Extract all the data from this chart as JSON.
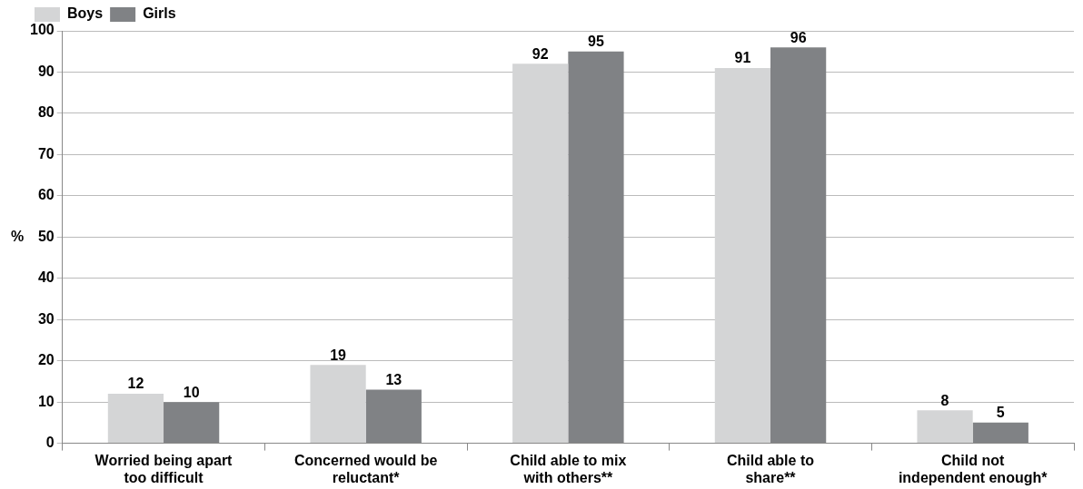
{
  "chart_data": {
    "type": "bar",
    "ylabel": "%",
    "categories": [
      "Worried being apart too difficult",
      "Concerned would be reluctant*",
      "Child able to mix with others**",
      "Child able to share**",
      "Child not independent enough*"
    ],
    "series": [
      {
        "name": "Boys",
        "color": "#d4d5d6",
        "values": [
          12,
          19,
          92,
          91,
          8
        ]
      },
      {
        "name": "Girls",
        "color": "#808285",
        "values": [
          10,
          13,
          95,
          96,
          5
        ]
      }
    ],
    "ylim": [
      0,
      100
    ],
    "yticks": [
      0,
      10,
      20,
      30,
      40,
      50,
      60,
      70,
      80,
      90,
      100
    ],
    "grid": "y",
    "legend": "top left",
    "data_labels": true
  }
}
